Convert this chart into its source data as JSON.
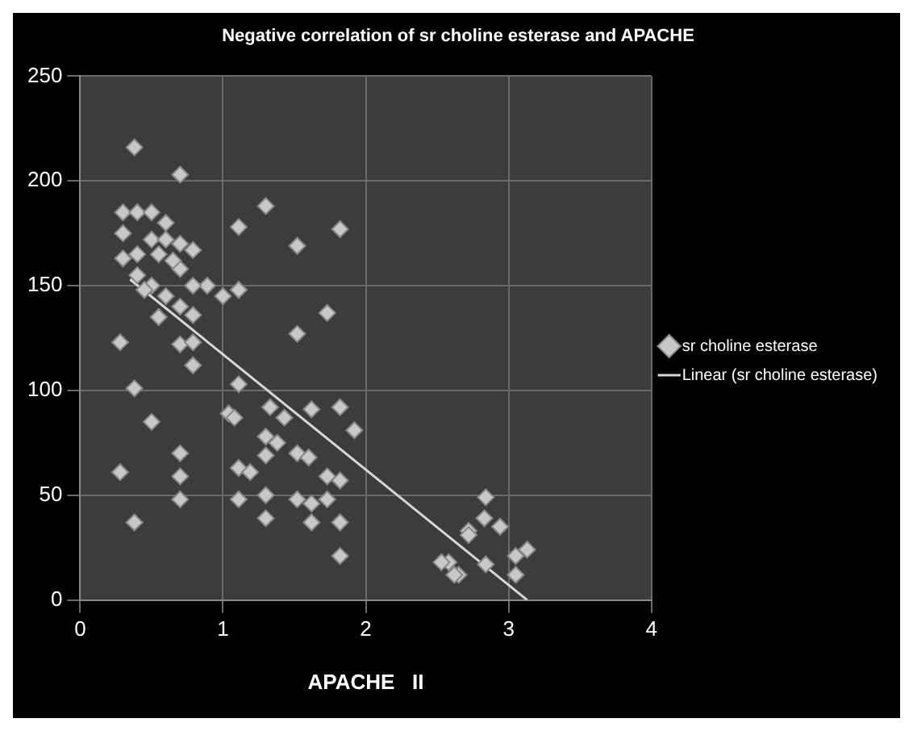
{
  "chart_data": {
    "type": "scatter",
    "title": "Negative correlation of sr choline esterase and APACHE",
    "xlabel": "APACHE   II",
    "xlim": [
      0,
      4
    ],
    "xticks": [
      0,
      1,
      2,
      3,
      4
    ],
    "ylim": [
      0,
      250
    ],
    "yticks": [
      0,
      50,
      100,
      150,
      200,
      250
    ],
    "grid": true,
    "legend": "right",
    "marker": "diamond",
    "series": [
      {
        "name": "sr choline esterase",
        "color": "#c8c8c8",
        "x": [
          0.38,
          0.7,
          1.3,
          1.82,
          1.11,
          1.52,
          0.79,
          0.7,
          0.89,
          0.79,
          1.11,
          0.79,
          1.73,
          0.28,
          0.7,
          0.79,
          0.79,
          1.52,
          0.38,
          1.11,
          0.5,
          1.04,
          1.08,
          1.33,
          1.62,
          1.82,
          1.43,
          1.92,
          1.3,
          1.38,
          0.7,
          1.3,
          1.52,
          1.6,
          0.28,
          0.7,
          1.11,
          1.19,
          1.73,
          1.82,
          0.7,
          1.11,
          1.3,
          1.52,
          1.62,
          1.73,
          1.3,
          1.62,
          0.38,
          1.82,
          1.82,
          2.58,
          2.65,
          2.72,
          2.84,
          2.83,
          2.94,
          2.72,
          3.13,
          3.05,
          2.84,
          3.05,
          2.53,
          2.62,
          0.3,
          0.4,
          0.5,
          0.6,
          0.3,
          0.5,
          0.6,
          0.7,
          0.4,
          0.55,
          0.65,
          0.3,
          0.4,
          0.5,
          0.6,
          0.7,
          0.55,
          0.45,
          1.0
        ],
        "values": [
          216,
          203,
          188,
          177,
          178,
          169,
          167,
          158,
          150,
          150,
          148,
          136,
          137,
          123,
          122,
          123,
          112,
          127,
          101,
          103,
          85,
          89,
          87,
          92,
          91,
          92,
          87,
          81,
          78,
          75,
          70,
          69,
          70,
          68,
          61,
          59,
          63,
          61,
          59,
          57,
          48,
          48,
          50,
          48,
          46,
          48,
          39,
          37,
          37,
          37,
          21,
          18,
          12,
          33,
          49,
          39,
          35,
          31,
          24,
          21,
          17,
          12,
          18,
          12,
          185,
          185,
          185,
          180,
          175,
          172,
          172,
          170,
          165,
          165,
          162,
          163,
          155,
          150,
          145,
          140,
          135,
          148,
          145
        ]
      },
      {
        "name": "Linear (sr choline esterase)",
        "type": "line",
        "color": "#d8d8d8",
        "marker": "none",
        "x": [
          0.35,
          3.13
        ],
        "values": [
          153,
          0
        ]
      }
    ]
  }
}
